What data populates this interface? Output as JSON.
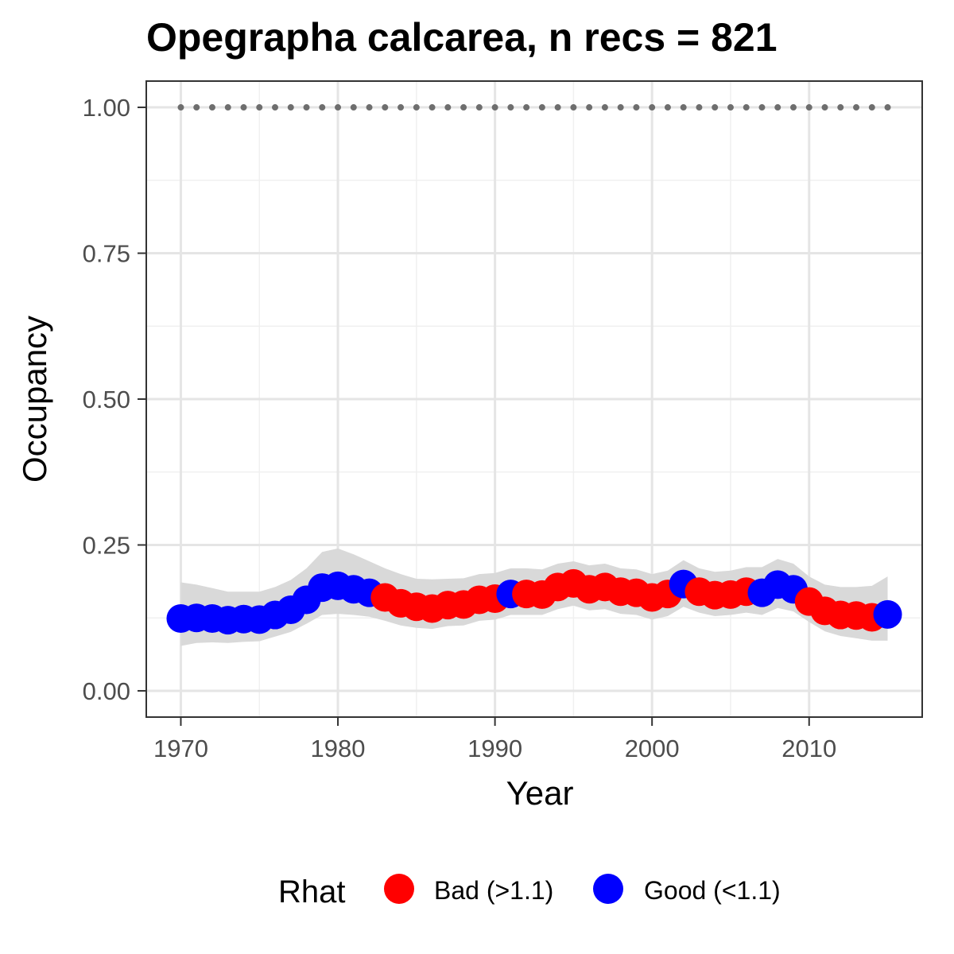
{
  "chart_data": {
    "type": "line",
    "title": "Opegrapha calcarea, n recs = 821",
    "xlabel": "Year",
    "ylabel": "Occupancy",
    "xlim": [
      1967.8,
      2017.2
    ],
    "ylim": [
      -0.045,
      1.045
    ],
    "x_ticks": [
      1970,
      1980,
      1990,
      2000,
      2010
    ],
    "x_tick_labels": [
      "1970",
      "1980",
      "1990",
      "2000",
      "2010"
    ],
    "y_ticks": [
      0,
      0.25,
      0.5,
      0.75,
      1.0
    ],
    "y_tick_labels": [
      "0.00",
      "0.25",
      "0.50",
      "0.75",
      "1.00"
    ],
    "grid": true,
    "legend": {
      "title": "Rhat",
      "position": "bottom",
      "entries": [
        {
          "label": "Bad (>1.1)",
          "color": "#ff0000"
        },
        {
          "label": "Good (<1.1)",
          "color": "#0000ff"
        }
      ]
    },
    "colors": {
      "Bad (>1.1)": "#ff0000",
      "Good (<1.1)": "#0000ff",
      "ribbon": "#d9d9d9",
      "reference": "#6e6e6e"
    },
    "reference_line": {
      "y": 1.0,
      "style": "dotted"
    },
    "points": [
      {
        "year": 1970,
        "occupancy": 0.124,
        "lower": 0.077,
        "upper": 0.186,
        "rhat": "Good (<1.1)"
      },
      {
        "year": 1971,
        "occupancy": 0.125,
        "lower": 0.082,
        "upper": 0.182,
        "rhat": "Good (<1.1)"
      },
      {
        "year": 1972,
        "occupancy": 0.124,
        "lower": 0.083,
        "upper": 0.176,
        "rhat": "Good (<1.1)"
      },
      {
        "year": 1973,
        "occupancy": 0.121,
        "lower": 0.082,
        "upper": 0.17,
        "rhat": "Good (<1.1)"
      },
      {
        "year": 1974,
        "occupancy": 0.123,
        "lower": 0.084,
        "upper": 0.17,
        "rhat": "Good (<1.1)"
      },
      {
        "year": 1975,
        "occupancy": 0.122,
        "lower": 0.085,
        "upper": 0.17,
        "rhat": "Good (<1.1)"
      },
      {
        "year": 1976,
        "occupancy": 0.13,
        "lower": 0.093,
        "upper": 0.178,
        "rhat": "Good (<1.1)"
      },
      {
        "year": 1977,
        "occupancy": 0.139,
        "lower": 0.101,
        "upper": 0.19,
        "rhat": "Good (<1.1)"
      },
      {
        "year": 1978,
        "occupancy": 0.156,
        "lower": 0.115,
        "upper": 0.21,
        "rhat": "Good (<1.1)"
      },
      {
        "year": 1979,
        "occupancy": 0.177,
        "lower": 0.13,
        "upper": 0.238,
        "rhat": "Good (<1.1)"
      },
      {
        "year": 1980,
        "occupancy": 0.18,
        "lower": 0.132,
        "upper": 0.244,
        "rhat": "Good (<1.1)"
      },
      {
        "year": 1981,
        "occupancy": 0.174,
        "lower": 0.13,
        "upper": 0.234,
        "rhat": "Good (<1.1)"
      },
      {
        "year": 1982,
        "occupancy": 0.168,
        "lower": 0.127,
        "upper": 0.222,
        "rhat": "Good (<1.1)"
      },
      {
        "year": 1983,
        "occupancy": 0.16,
        "lower": 0.12,
        "upper": 0.21,
        "rhat": "Bad (>1.1)"
      },
      {
        "year": 1984,
        "occupancy": 0.15,
        "lower": 0.112,
        "upper": 0.2,
        "rhat": "Bad (>1.1)"
      },
      {
        "year": 1985,
        "occupancy": 0.144,
        "lower": 0.108,
        "upper": 0.192,
        "rhat": "Bad (>1.1)"
      },
      {
        "year": 1986,
        "occupancy": 0.141,
        "lower": 0.106,
        "upper": 0.191,
        "rhat": "Bad (>1.1)"
      },
      {
        "year": 1987,
        "occupancy": 0.147,
        "lower": 0.111,
        "upper": 0.192,
        "rhat": "Bad (>1.1)"
      },
      {
        "year": 1988,
        "occupancy": 0.148,
        "lower": 0.112,
        "upper": 0.193,
        "rhat": "Bad (>1.1)"
      },
      {
        "year": 1989,
        "occupancy": 0.156,
        "lower": 0.12,
        "upper": 0.2,
        "rhat": "Bad (>1.1)"
      },
      {
        "year": 1990,
        "occupancy": 0.158,
        "lower": 0.122,
        "upper": 0.202,
        "rhat": "Bad (>1.1)"
      },
      {
        "year": 1991,
        "occupancy": 0.166,
        "lower": 0.13,
        "upper": 0.21,
        "rhat": "Good (<1.1)"
      },
      {
        "year": 1992,
        "occupancy": 0.166,
        "lower": 0.13,
        "upper": 0.21,
        "rhat": "Bad (>1.1)"
      },
      {
        "year": 1993,
        "occupancy": 0.165,
        "lower": 0.13,
        "upper": 0.208,
        "rhat": "Bad (>1.1)"
      },
      {
        "year": 1994,
        "occupancy": 0.178,
        "lower": 0.14,
        "upper": 0.218,
        "rhat": "Bad (>1.1)"
      },
      {
        "year": 1995,
        "occupancy": 0.184,
        "lower": 0.146,
        "upper": 0.222,
        "rhat": "Bad (>1.1)"
      },
      {
        "year": 1996,
        "occupancy": 0.174,
        "lower": 0.138,
        "upper": 0.215,
        "rhat": "Bad (>1.1)"
      },
      {
        "year": 1997,
        "occupancy": 0.178,
        "lower": 0.14,
        "upper": 0.218,
        "rhat": "Bad (>1.1)"
      },
      {
        "year": 1998,
        "occupancy": 0.17,
        "lower": 0.132,
        "upper": 0.21,
        "rhat": "Bad (>1.1)"
      },
      {
        "year": 1999,
        "occupancy": 0.168,
        "lower": 0.13,
        "upper": 0.208,
        "rhat": "Bad (>1.1)"
      },
      {
        "year": 2000,
        "occupancy": 0.16,
        "lower": 0.122,
        "upper": 0.2,
        "rhat": "Bad (>1.1)"
      },
      {
        "year": 2001,
        "occupancy": 0.166,
        "lower": 0.128,
        "upper": 0.206,
        "rhat": "Bad (>1.1)"
      },
      {
        "year": 2002,
        "occupancy": 0.183,
        "lower": 0.144,
        "upper": 0.224,
        "rhat": "Good (<1.1)"
      },
      {
        "year": 2003,
        "occupancy": 0.17,
        "lower": 0.134,
        "upper": 0.21,
        "rhat": "Bad (>1.1)"
      },
      {
        "year": 2004,
        "occupancy": 0.164,
        "lower": 0.128,
        "upper": 0.204,
        "rhat": "Bad (>1.1)"
      },
      {
        "year": 2005,
        "occupancy": 0.165,
        "lower": 0.13,
        "upper": 0.206,
        "rhat": "Bad (>1.1)"
      },
      {
        "year": 2006,
        "occupancy": 0.17,
        "lower": 0.134,
        "upper": 0.212,
        "rhat": "Bad (>1.1)"
      },
      {
        "year": 2007,
        "occupancy": 0.168,
        "lower": 0.13,
        "upper": 0.212,
        "rhat": "Good (<1.1)"
      },
      {
        "year": 2008,
        "occupancy": 0.182,
        "lower": 0.142,
        "upper": 0.226,
        "rhat": "Good (<1.1)"
      },
      {
        "year": 2009,
        "occupancy": 0.174,
        "lower": 0.136,
        "upper": 0.218,
        "rhat": "Good (<1.1)"
      },
      {
        "year": 2010,
        "occupancy": 0.153,
        "lower": 0.118,
        "upper": 0.196,
        "rhat": "Bad (>1.1)"
      },
      {
        "year": 2011,
        "occupancy": 0.137,
        "lower": 0.102,
        "upper": 0.182,
        "rhat": "Bad (>1.1)"
      },
      {
        "year": 2012,
        "occupancy": 0.13,
        "lower": 0.094,
        "upper": 0.178,
        "rhat": "Bad (>1.1)"
      },
      {
        "year": 2013,
        "occupancy": 0.129,
        "lower": 0.09,
        "upper": 0.178,
        "rhat": "Bad (>1.1)"
      },
      {
        "year": 2014,
        "occupancy": 0.126,
        "lower": 0.086,
        "upper": 0.18,
        "rhat": "Bad (>1.1)"
      },
      {
        "year": 2015,
        "occupancy": 0.131,
        "lower": 0.086,
        "upper": 0.196,
        "rhat": "Good (<1.1)"
      }
    ]
  }
}
